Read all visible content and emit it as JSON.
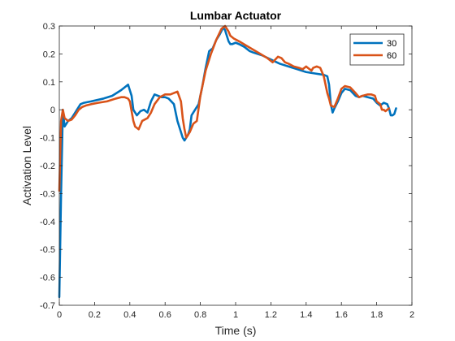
{
  "colors": {
    "background": "#ffffff",
    "axes": "#262626",
    "text": "#262626"
  },
  "chart_data": {
    "type": "line",
    "title": "Lumbar Actuator",
    "xlabel": "Time (s)",
    "ylabel": "Activation Level",
    "xlim": [
      0,
      2
    ],
    "ylim": [
      -0.7,
      0.3
    ],
    "grid": false,
    "box": true,
    "legend_placement": "top-right",
    "x_ticks": [
      0,
      0.2,
      0.4,
      0.6,
      0.8,
      1,
      1.2,
      1.4,
      1.6,
      1.8,
      2
    ],
    "x_tick_labels": [
      "0",
      "0.2",
      "0.4",
      "0.6",
      "0.8",
      "1",
      "1.2",
      "1.4",
      "1.6",
      "1.8",
      "2"
    ],
    "y_ticks": [
      0.3,
      0.2,
      0.1,
      0,
      -0.1,
      -0.2,
      -0.3,
      -0.4,
      -0.5,
      -0.6,
      -0.7
    ],
    "y_tick_labels": [
      "0.3",
      "0.2",
      "0.1",
      "0",
      "-0.1",
      "-0.2",
      "-0.3",
      "-0.4",
      "-0.5",
      "-0.6",
      "-0.7"
    ],
    "series": [
      {
        "name": "30",
        "color": "#0072BD",
        "x": [
          0,
          0.01,
          0.02,
          0.03,
          0.05,
          0.07,
          0.09,
          0.1,
          0.12,
          0.14,
          0.18,
          0.25,
          0.3,
          0.35,
          0.38,
          0.39,
          0.41,
          0.42,
          0.44,
          0.46,
          0.48,
          0.5,
          0.52,
          0.54,
          0.56,
          0.58,
          0.6,
          0.62,
          0.65,
          0.67,
          0.69,
          0.7,
          0.71,
          0.72,
          0.73,
          0.74,
          0.75,
          0.77,
          0.79,
          0.81,
          0.83,
          0.85,
          0.87,
          0.89,
          0.91,
          0.93,
          0.94,
          0.95,
          0.96,
          0.97,
          0.98,
          1.0,
          1.02,
          1.05,
          1.08,
          1.1,
          1.15,
          1.2,
          1.25,
          1.3,
          1.35,
          1.4,
          1.45,
          1.5,
          1.52,
          1.53,
          1.54,
          1.55,
          1.56,
          1.58,
          1.6,
          1.62,
          1.65,
          1.68,
          1.7,
          1.72,
          1.75,
          1.78,
          1.8,
          1.82,
          1.84,
          1.86,
          1.87,
          1.88,
          1.89,
          1.9,
          1.91
        ],
        "y": [
          -0.67,
          -0.3,
          0.0,
          -0.06,
          -0.04,
          -0.03,
          -0.01,
          0.0,
          0.02,
          0.025,
          0.03,
          0.04,
          0.05,
          0.07,
          0.085,
          0.09,
          0.05,
          0.0,
          -0.02,
          -0.005,
          0.0,
          -0.01,
          0.03,
          0.055,
          0.05,
          0.045,
          0.045,
          0.04,
          0.02,
          -0.04,
          -0.08,
          -0.1,
          -0.11,
          -0.1,
          -0.09,
          -0.07,
          -0.02,
          0.0,
          0.02,
          0.08,
          0.15,
          0.21,
          0.22,
          0.25,
          0.27,
          0.295,
          0.285,
          0.265,
          0.245,
          0.235,
          0.235,
          0.24,
          0.235,
          0.225,
          0.21,
          0.205,
          0.195,
          0.18,
          0.165,
          0.155,
          0.145,
          0.135,
          0.13,
          0.125,
          0.12,
          0.09,
          0.02,
          -0.01,
          0.005,
          0.03,
          0.06,
          0.075,
          0.07,
          0.05,
          0.045,
          0.05,
          0.045,
          0.04,
          0.025,
          0.015,
          0.025,
          0.02,
          0.005,
          -0.02,
          -0.02,
          -0.015,
          0.005
        ]
      },
      {
        "name": "60",
        "color": "#D95319",
        "x": [
          0,
          0.01,
          0.02,
          0.03,
          0.05,
          0.07,
          0.09,
          0.11,
          0.13,
          0.15,
          0.18,
          0.22,
          0.27,
          0.32,
          0.35,
          0.37,
          0.39,
          0.4,
          0.42,
          0.43,
          0.45,
          0.47,
          0.5,
          0.52,
          0.54,
          0.57,
          0.6,
          0.63,
          0.65,
          0.67,
          0.69,
          0.7,
          0.71,
          0.72,
          0.74,
          0.76,
          0.78,
          0.8,
          0.83,
          0.86,
          0.89,
          0.92,
          0.94,
          0.95,
          0.96,
          0.97,
          0.99,
          1.02,
          1.06,
          1.1,
          1.14,
          1.18,
          1.21,
          1.24,
          1.26,
          1.28,
          1.3,
          1.33,
          1.36,
          1.38,
          1.4,
          1.41,
          1.43,
          1.44,
          1.46,
          1.48,
          1.5,
          1.52,
          1.53,
          1.54,
          1.56,
          1.58,
          1.6,
          1.62,
          1.65,
          1.68,
          1.7,
          1.72,
          1.75,
          1.77,
          1.79,
          1.8,
          1.82,
          1.83,
          1.84,
          1.85,
          1.86,
          1.87
        ],
        "y": [
          -0.29,
          -0.04,
          0.0,
          -0.03,
          -0.04,
          -0.035,
          -0.02,
          0.0,
          0.01,
          0.015,
          0.02,
          0.025,
          0.03,
          0.04,
          0.045,
          0.045,
          0.04,
          0.03,
          -0.04,
          -0.06,
          -0.07,
          -0.04,
          -0.03,
          -0.01,
          0.02,
          0.045,
          0.055,
          0.055,
          0.06,
          0.065,
          0.03,
          -0.03,
          -0.07,
          -0.1,
          -0.08,
          -0.05,
          -0.04,
          0.05,
          0.14,
          0.2,
          0.25,
          0.29,
          0.3,
          0.29,
          0.28,
          0.265,
          0.255,
          0.245,
          0.23,
          0.215,
          0.2,
          0.185,
          0.17,
          0.19,
          0.185,
          0.17,
          0.165,
          0.155,
          0.15,
          0.145,
          0.155,
          0.15,
          0.14,
          0.15,
          0.155,
          0.15,
          0.12,
          0.06,
          0.04,
          0.015,
          0.01,
          0.04,
          0.075,
          0.085,
          0.08,
          0.06,
          0.045,
          0.05,
          0.055,
          0.055,
          0.05,
          0.03,
          0.02,
          0.0,
          0.0,
          -0.005,
          0.0,
          0.005
        ]
      }
    ]
  }
}
